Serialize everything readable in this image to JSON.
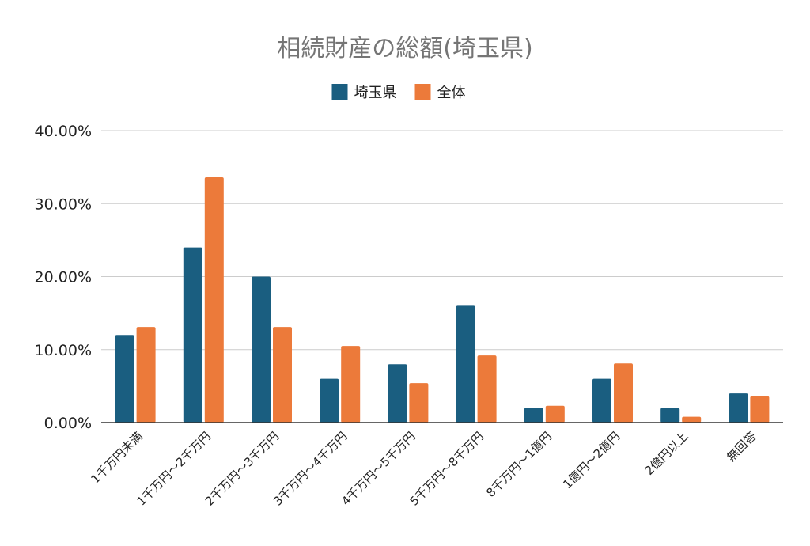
{
  "chart_data": {
    "type": "bar",
    "title": "相続財産の総額(埼玉県)",
    "categories": [
      "1千万円未満",
      "1千万円～2千万円",
      "2千万円～3千万円",
      "3千万円～4千万円",
      "4千万円～5千万円",
      "5千万円～8千万円",
      "8千万円～1億円",
      "1億円～2億円",
      "2億円以上",
      "無回答"
    ],
    "series": [
      {
        "name": "埼玉県",
        "color": "#1a5e80",
        "values": [
          12,
          24,
          20,
          6,
          8,
          16,
          2,
          6,
          2,
          4
        ]
      },
      {
        "name": "全体",
        "color": "#ec7a3a",
        "values": [
          13.1,
          33.6,
          13.1,
          10.5,
          5.4,
          9.2,
          2.3,
          8.1,
          0.8,
          3.6
        ]
      }
    ],
    "y_ticks": [
      "0.00%",
      "10.00%",
      "20.00%",
      "30.00%",
      "40.00%"
    ],
    "ylim": [
      0,
      40
    ],
    "xlabel": "",
    "ylabel": "",
    "legend_position": "top-center",
    "grid": true,
    "colors": {
      "gridline": "#cccccc",
      "axis": "#333333",
      "title": "#757575",
      "text": "#222222"
    }
  }
}
